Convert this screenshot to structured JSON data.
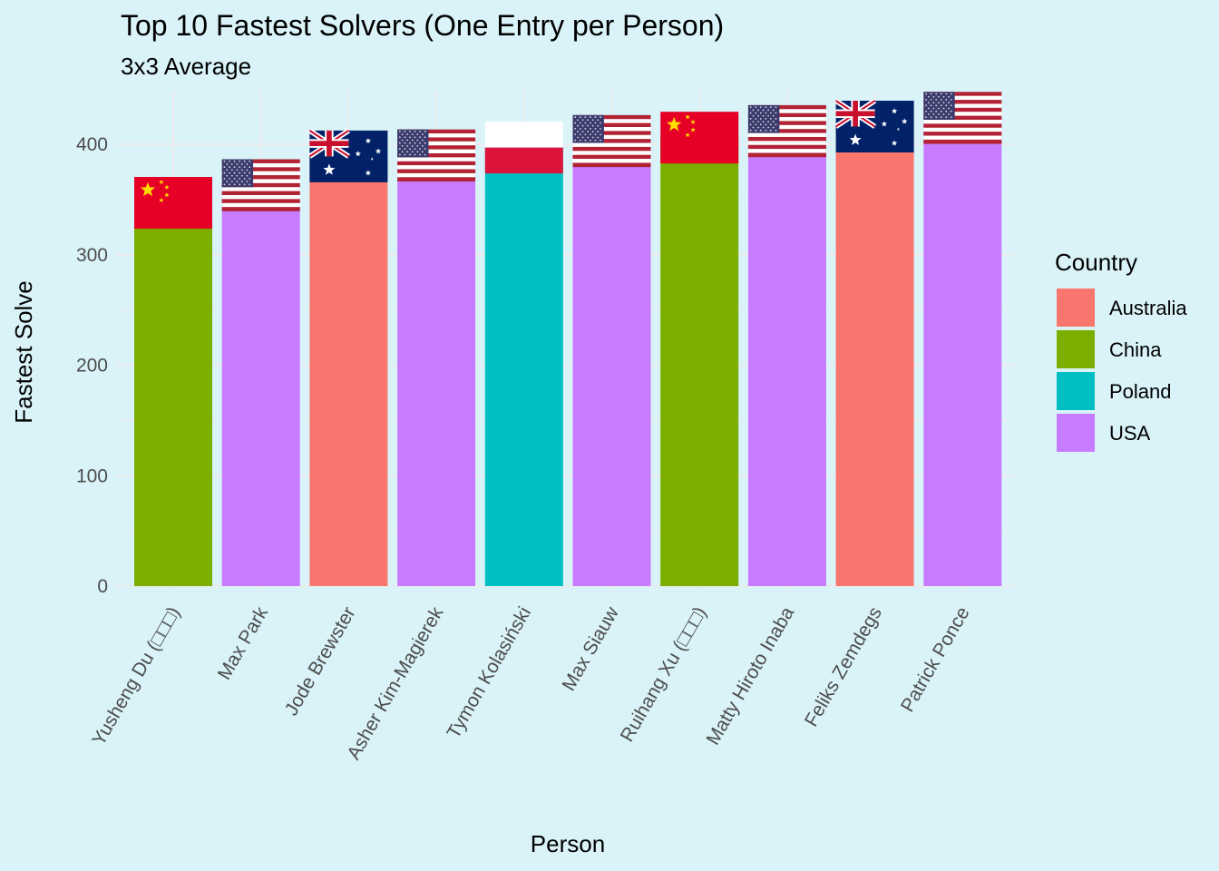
{
  "chart_data": {
    "type": "bar",
    "title": "Top 10 Fastest Solvers (One Entry per Person)",
    "subtitle": "3x3 Average",
    "xlabel": "Person",
    "ylabel": "Fastest Solve",
    "ylim": [
      0,
      440
    ],
    "yticks": [
      0,
      100,
      200,
      300,
      400
    ],
    "grid": true,
    "legend": {
      "title": "Country",
      "placement": "right",
      "entries": [
        {
          "label": "Australia",
          "color": "#F8766D"
        },
        {
          "label": "China",
          "color": "#7CAE00"
        },
        {
          "label": "Poland",
          "color": "#00BFC4"
        },
        {
          "label": "USA",
          "color": "#C77CFF"
        }
      ]
    },
    "categories": [
      "Yusheng Du (□□□)",
      "Max Park",
      "Jode Brewster",
      "Asher Kim-Magierek",
      "Tymon Kolasiński",
      "Max Siauw",
      "Ruihang Xu (□□□)",
      "Matty Hiroto Inaba",
      "Feliks Zemdegs",
      "Patrick Ponce"
    ],
    "values": [
      347,
      363,
      389,
      390,
      397,
      403,
      406,
      412,
      416,
      424
    ],
    "countries": [
      "China",
      "USA",
      "Australia",
      "USA",
      "Poland",
      "USA",
      "China",
      "USA",
      "Australia",
      "USA"
    ],
    "flag_icons": [
      "china-flag-icon",
      "usa-flag-icon",
      "australia-flag-icon",
      "usa-flag-icon",
      "poland-flag-icon",
      "usa-flag-icon",
      "china-flag-icon",
      "usa-flag-icon",
      "australia-flag-icon",
      "usa-flag-icon"
    ]
  }
}
